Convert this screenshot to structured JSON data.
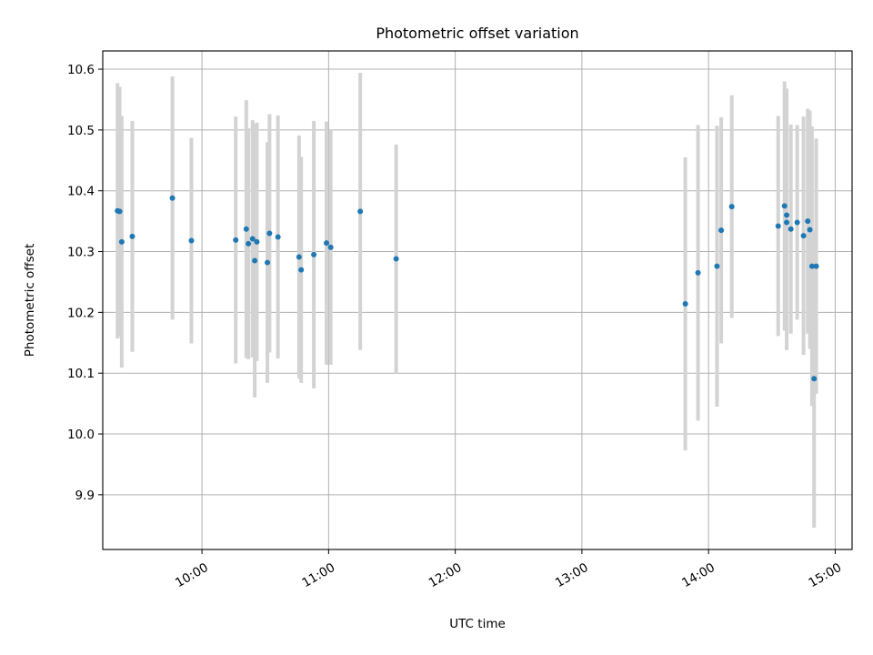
{
  "chart_data": {
    "type": "scatter",
    "title": "Photometric offset variation",
    "xlabel": "UTC time",
    "ylabel": "Photometric offset",
    "x_axis": "time",
    "grid": true,
    "marker_color": "#1f77b4",
    "errorbar_color": "#d3d3d3",
    "xlim": [
      "09:13",
      "15:08"
    ],
    "ylim": [
      9.81,
      10.63
    ],
    "x_ticks": [
      "10:00",
      "11:00",
      "12:00",
      "13:00",
      "14:00",
      "15:00"
    ],
    "y_ticks": [
      "9.9",
      "10.0",
      "10.1",
      "10.2",
      "10.3",
      "10.4",
      "10.5",
      "10.6"
    ],
    "series": [
      {
        "points": [
          {
            "x": "09:20",
            "y": 10.367,
            "err": 0.21
          },
          {
            "x": "09:21",
            "y": 10.366,
            "err": 0.205
          },
          {
            "x": "09:22",
            "y": 10.316,
            "err": 0.207
          },
          {
            "x": "09:27",
            "y": 10.325,
            "err": 0.19
          },
          {
            "x": "09:46",
            "y": 10.388,
            "err": 0.2
          },
          {
            "x": "09:55",
            "y": 10.318,
            "err": 0.169
          },
          {
            "x": "10:16",
            "y": 10.319,
            "err": 0.203
          },
          {
            "x": "10:21",
            "y": 10.337,
            "err": 0.212
          },
          {
            "x": "10:22",
            "y": 10.313,
            "err": 0.19
          },
          {
            "x": "10:24",
            "y": 10.321,
            "err": 0.195
          },
          {
            "x": "10:25",
            "y": 10.285,
            "err": 0.225
          },
          {
            "x": "10:26",
            "y": 10.316,
            "err": 0.196
          },
          {
            "x": "10:31",
            "y": 10.282,
            "err": 0.198
          },
          {
            "x": "10:32",
            "y": 10.33,
            "err": 0.196
          },
          {
            "x": "10:36",
            "y": 10.324,
            "err": 0.2
          },
          {
            "x": "10:46",
            "y": 10.291,
            "err": 0.2
          },
          {
            "x": "10:47",
            "y": 10.27,
            "err": 0.186
          },
          {
            "x": "10:53",
            "y": 10.295,
            "err": 0.22
          },
          {
            "x": "10:59",
            "y": 10.314,
            "err": 0.2
          },
          {
            "x": "11:01",
            "y": 10.307,
            "err": 0.193
          },
          {
            "x": "11:15",
            "y": 10.366,
            "err": 0.228
          },
          {
            "x": "11:32",
            "y": 10.288,
            "err": 0.188
          },
          {
            "x": "13:49",
            "y": 10.214,
            "err": 0.241
          },
          {
            "x": "13:55",
            "y": 10.265,
            "err": 0.243
          },
          {
            "x": "14:04",
            "y": 10.276,
            "err": 0.231
          },
          {
            "x": "14:06",
            "y": 10.335,
            "err": 0.186
          },
          {
            "x": "14:11",
            "y": 10.374,
            "err": 0.183
          },
          {
            "x": "14:33",
            "y": 10.342,
            "err": 0.181
          },
          {
            "x": "14:36",
            "y": 10.375,
            "err": 0.205
          },
          {
            "x": "14:37",
            "y": 10.36,
            "err": 0.208
          },
          {
            "x": "14:37",
            "y": 10.348,
            "err": 0.21
          },
          {
            "x": "14:39",
            "y": 10.337,
            "err": 0.172
          },
          {
            "x": "14:42",
            "y": 10.348,
            "err": 0.16
          },
          {
            "x": "14:45",
            "y": 10.326,
            "err": 0.196
          },
          {
            "x": "14:47",
            "y": 10.35,
            "err": 0.185
          },
          {
            "x": "14:48",
            "y": 10.336,
            "err": 0.196
          },
          {
            "x": "14:49",
            "y": 10.276,
            "err": 0.23
          },
          {
            "x": "14:50",
            "y": 10.091,
            "err": 0.245
          },
          {
            "x": "14:51",
            "y": 10.276,
            "err": 0.21
          }
        ]
      }
    ]
  }
}
